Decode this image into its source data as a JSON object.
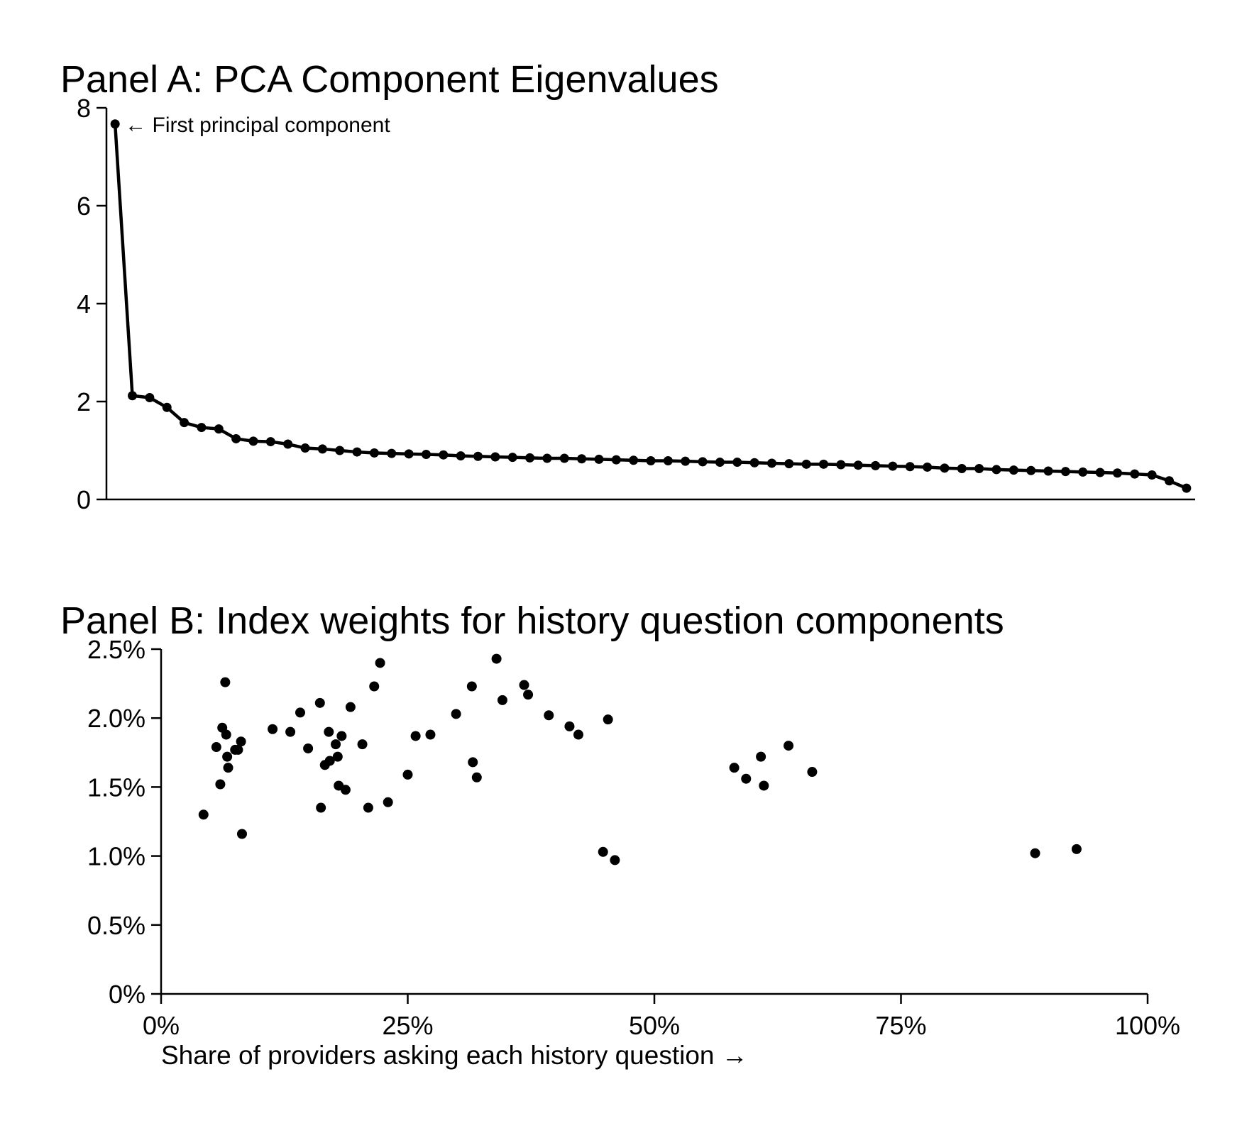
{
  "chart_data": [
    {
      "type": "line",
      "title": "Panel A: PCA Component Eigenvalues",
      "xlabel": "",
      "ylabel": "",
      "ylim": [
        0,
        8
      ],
      "yticks": [
        "0",
        "2",
        "4",
        "6",
        "8"
      ],
      "xlim": [
        0.5,
        57.5
      ],
      "markers": true,
      "grid": false,
      "annotation": {
        "text": "← First principal component",
        "point_index": 0
      },
      "values": [
        7.67,
        2.12,
        2.08,
        1.88,
        1.57,
        1.47,
        1.44,
        1.24,
        1.19,
        1.18,
        1.13,
        1.05,
        1.03,
        1.0,
        0.97,
        0.95,
        0.94,
        0.93,
        0.92,
        0.91,
        0.89,
        0.88,
        0.87,
        0.86,
        0.85,
        0.84,
        0.84,
        0.83,
        0.82,
        0.81,
        0.8,
        0.79,
        0.79,
        0.78,
        0.77,
        0.76,
        0.76,
        0.75,
        0.74,
        0.73,
        0.72,
        0.72,
        0.71,
        0.7,
        0.69,
        0.68,
        0.67,
        0.66,
        0.64,
        0.63,
        0.63,
        0.61,
        0.6,
        0.59,
        0.58,
        0.57,
        0.56,
        0.55,
        0.54,
        0.52,
        0.5,
        0.38,
        0.23
      ]
    },
    {
      "type": "scatter",
      "title": "Panel B: Index weights for history question components",
      "xlabel": "Share of providers asking each history question →",
      "ylabel": "",
      "xlim": [
        0,
        100
      ],
      "ylim": [
        0,
        2.5
      ],
      "xticks": [
        "0%",
        "25%",
        "50%",
        "75%",
        "100%"
      ],
      "yticks": [
        "0%",
        "0.5%",
        "1.0%",
        "1.5%",
        "2.0%",
        "2.5%"
      ],
      "grid": false,
      "points": [
        {
          "x": 4.3,
          "y": 1.3
        },
        {
          "x": 5.6,
          "y": 1.79
        },
        {
          "x": 6.0,
          "y": 1.52
        },
        {
          "x": 6.2,
          "y": 1.93
        },
        {
          "x": 6.5,
          "y": 2.26
        },
        {
          "x": 6.6,
          "y": 1.88
        },
        {
          "x": 6.7,
          "y": 1.72
        },
        {
          "x": 6.8,
          "y": 1.64
        },
        {
          "x": 7.5,
          "y": 1.77
        },
        {
          "x": 7.8,
          "y": 1.77
        },
        {
          "x": 8.1,
          "y": 1.83
        },
        {
          "x": 8.2,
          "y": 1.16
        },
        {
          "x": 11.3,
          "y": 1.92
        },
        {
          "x": 13.1,
          "y": 1.9
        },
        {
          "x": 14.1,
          "y": 2.04
        },
        {
          "x": 14.9,
          "y": 1.78
        },
        {
          "x": 16.1,
          "y": 2.11
        },
        {
          "x": 16.2,
          "y": 1.35
        },
        {
          "x": 16.6,
          "y": 1.66
        },
        {
          "x": 17.0,
          "y": 1.9
        },
        {
          "x": 17.1,
          "y": 1.69
        },
        {
          "x": 17.7,
          "y": 1.81
        },
        {
          "x": 17.9,
          "y": 1.72
        },
        {
          "x": 18.0,
          "y": 1.51
        },
        {
          "x": 18.3,
          "y": 1.87
        },
        {
          "x": 18.7,
          "y": 1.48
        },
        {
          "x": 19.2,
          "y": 2.08
        },
        {
          "x": 20.4,
          "y": 1.81
        },
        {
          "x": 21.0,
          "y": 1.35
        },
        {
          "x": 21.6,
          "y": 2.23
        },
        {
          "x": 22.2,
          "y": 2.4
        },
        {
          "x": 23.0,
          "y": 1.39
        },
        {
          "x": 25.0,
          "y": 1.59
        },
        {
          "x": 25.8,
          "y": 1.87
        },
        {
          "x": 27.3,
          "y": 1.88
        },
        {
          "x": 29.9,
          "y": 2.03
        },
        {
          "x": 31.5,
          "y": 2.23
        },
        {
          "x": 31.6,
          "y": 1.68
        },
        {
          "x": 32.0,
          "y": 1.57
        },
        {
          "x": 34.0,
          "y": 2.43
        },
        {
          "x": 34.6,
          "y": 2.13
        },
        {
          "x": 36.8,
          "y": 2.24
        },
        {
          "x": 37.2,
          "y": 2.17
        },
        {
          "x": 39.3,
          "y": 2.02
        },
        {
          "x": 41.4,
          "y": 1.94
        },
        {
          "x": 42.3,
          "y": 1.88
        },
        {
          "x": 44.8,
          "y": 1.03
        },
        {
          "x": 45.3,
          "y": 1.99
        },
        {
          "x": 46.0,
          "y": 0.97
        },
        {
          "x": 58.1,
          "y": 1.64
        },
        {
          "x": 59.3,
          "y": 1.56
        },
        {
          "x": 60.8,
          "y": 1.72
        },
        {
          "x": 61.1,
          "y": 1.51
        },
        {
          "x": 63.6,
          "y": 1.8
        },
        {
          "x": 66.0,
          "y": 1.61
        },
        {
          "x": 88.6,
          "y": 1.02
        },
        {
          "x": 92.8,
          "y": 1.05
        }
      ]
    }
  ]
}
